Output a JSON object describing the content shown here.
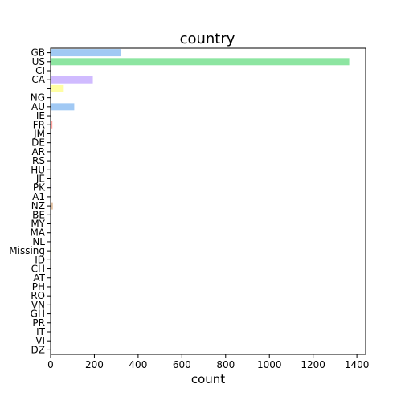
{
  "chart_data": {
    "type": "bar",
    "orientation": "horizontal",
    "title": "country",
    "xlabel": "count",
    "ylabel": "",
    "xlim": [
      0,
      1440
    ],
    "xticks": [
      0,
      200,
      400,
      600,
      800,
      1000,
      1200,
      1400
    ],
    "grid": false,
    "categories": [
      "GB",
      "US",
      "CI",
      "CA",
      "",
      "NG",
      "AU",
      "IE",
      "FR",
      "JM",
      "DE",
      "AR",
      "RS",
      "HU",
      "JE",
      "PK",
      "A1",
      "NZ",
      "BE",
      "MY",
      "MA",
      "NL",
      "Missing",
      "ID",
      "CH",
      "AT",
      "PH",
      "RO",
      "VN",
      "GH",
      "PR",
      "IT",
      "VI",
      "DZ"
    ],
    "values": [
      320,
      1365,
      1,
      193,
      60,
      1,
      108,
      3,
      8,
      2,
      2,
      3,
      1,
      1,
      1,
      4,
      2,
      10,
      1,
      1,
      3,
      1,
      4,
      1,
      1,
      1,
      1,
      1,
      2,
      1,
      1,
      1,
      1,
      1
    ],
    "colors": [
      "#a1c9f4",
      "#8de5a1",
      "#ff9f9b",
      "#d0bbff",
      "#fffea3",
      "#debb9b",
      "#a1c9f4",
      "#8de5a1",
      "#ff9f9b",
      "#d0bbff",
      "#fffea3",
      "#debb9b",
      "#a1c9f4",
      "#8de5a1",
      "#ff9f9b",
      "#d0bbff",
      "#fffea3",
      "#debb9b",
      "#a1c9f4",
      "#8de5a1",
      "#ff9f9b",
      "#d0bbff",
      "#fffea3",
      "#debb9b",
      "#a1c9f4",
      "#8de5a1",
      "#ff9f9b",
      "#d0bbff",
      "#fffea3",
      "#debb9b",
      "#a1c9f4",
      "#8de5a1",
      "#ff9f9b",
      "#d0bbff"
    ]
  }
}
